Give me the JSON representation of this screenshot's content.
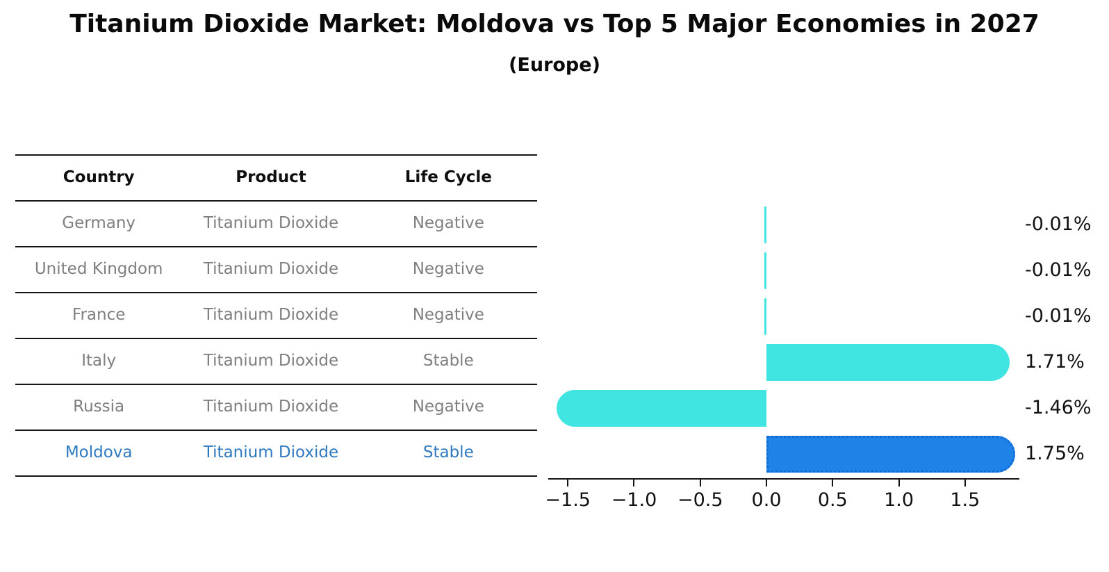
{
  "title": "Titanium Dioxide Market: Moldova vs Top 5 Major Economies in 2027",
  "subtitle": "(Europe)",
  "table": {
    "headers": [
      "Country",
      "Product",
      "Life Cycle"
    ],
    "rows": [
      {
        "country": "Germany",
        "product": "Titanium Dioxide",
        "life_cycle": "Negative",
        "highlight": false
      },
      {
        "country": "United Kingdom",
        "product": "Titanium Dioxide",
        "life_cycle": "Negative",
        "highlight": false
      },
      {
        "country": "France",
        "product": "Titanium Dioxide",
        "life_cycle": "Negative",
        "highlight": false
      },
      {
        "country": "Italy",
        "product": "Titanium Dioxide",
        "life_cycle": "Stable",
        "highlight": false
      },
      {
        "country": "Russia",
        "product": "Titanium Dioxide",
        "life_cycle": "Negative",
        "highlight": false
      },
      {
        "country": "Moldova",
        "product": "Titanium Dioxide",
        "life_cycle": "Stable",
        "highlight": true
      }
    ]
  },
  "chart_data": {
    "type": "bar",
    "orientation": "horizontal",
    "categories": [
      "Germany",
      "United Kingdom",
      "France",
      "Italy",
      "Russia",
      "Moldova"
    ],
    "values": [
      -0.01,
      -0.01,
      -0.01,
      1.71,
      -1.46,
      1.75
    ],
    "value_labels": [
      "-0.01%",
      "-0.01%",
      "-0.01%",
      "1.71%",
      "-1.46%",
      "1.75%"
    ],
    "highlight_category": "Moldova",
    "xlim": [
      -1.648,
      1.91
    ],
    "x_ticks": [
      -1.5,
      -1.0,
      -0.5,
      0.0,
      0.5,
      1.0,
      1.5
    ],
    "x_tick_labels": [
      "−1.5",
      "−1.0",
      "−0.5",
      "0.0",
      "0.5",
      "1.0",
      "1.5"
    ],
    "grid": false,
    "legend": false,
    "title": "Titanium Dioxide Market: Moldova vs Top 5 Major Economies in 2027 (Europe)"
  },
  "colors": {
    "bar_default": "#40e5e1",
    "bar_highlight": "#1e82e8",
    "bar_highlight_border": "#0f6bd6",
    "row_text_gray": "#7f7f7f",
    "row_text_highlight": "#2e79c0",
    "header_text": "#0f0f0f",
    "axis_line": "#151515",
    "label_text": "#111111"
  }
}
